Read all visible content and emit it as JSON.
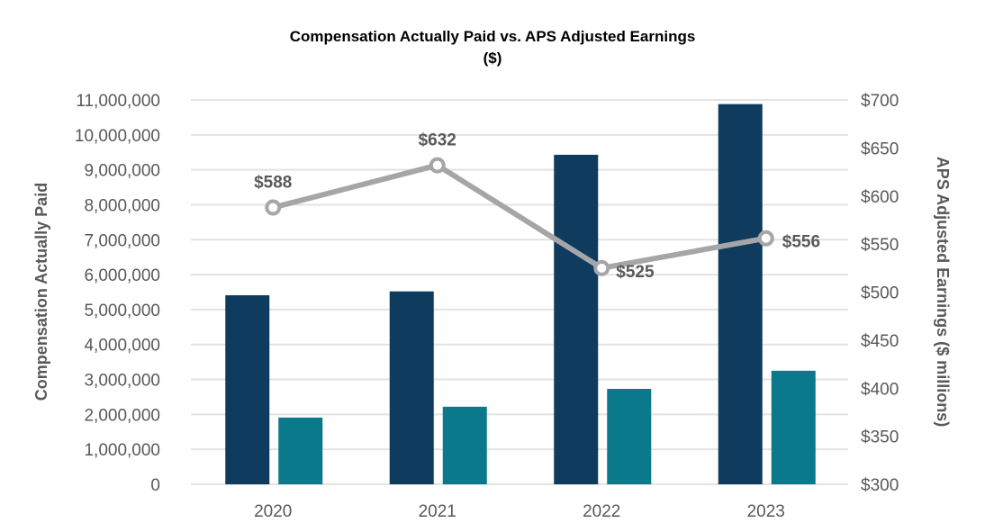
{
  "chart_data": {
    "type": "bar+line",
    "title": "Compensation Actually Paid vs. APS Adjusted Earnings",
    "subtitle": "($)",
    "categories": [
      "2020",
      "2021",
      "2022",
      "2023"
    ],
    "ylabel": "Compensation Actually Paid",
    "y2label": "APS Adjusted Earnings ($ millions)",
    "ylim": [
      0,
      11000000
    ],
    "y2lim": [
      300,
      700
    ],
    "yticks": [
      "0",
      "1,000,000",
      "2,000,000",
      "3,000,000",
      "4,000,000",
      "5,000,000",
      "6,000,000",
      "7,000,000",
      "8,000,000",
      "9,000,000",
      "10,000,000",
      "11,000,000"
    ],
    "y2ticks": [
      "$300",
      "$350",
      "$400",
      "$450",
      "$500",
      "$550",
      "$600",
      "$650",
      "$700"
    ],
    "grid": true,
    "series": [
      {
        "type": "bar",
        "axis": "left",
        "color": "#0e3b5e",
        "values": [
          5410000,
          5520000,
          9430000,
          10880000
        ]
      },
      {
        "type": "bar",
        "axis": "left",
        "color": "#0a798c",
        "values": [
          1910000,
          2220000,
          2730000,
          3250000
        ]
      },
      {
        "type": "line",
        "axis": "right",
        "color": "#a6a6a8",
        "values": [
          588,
          632,
          525,
          556
        ],
        "labels": [
          "$588",
          "$632",
          "$525",
          "$556"
        ]
      }
    ]
  }
}
